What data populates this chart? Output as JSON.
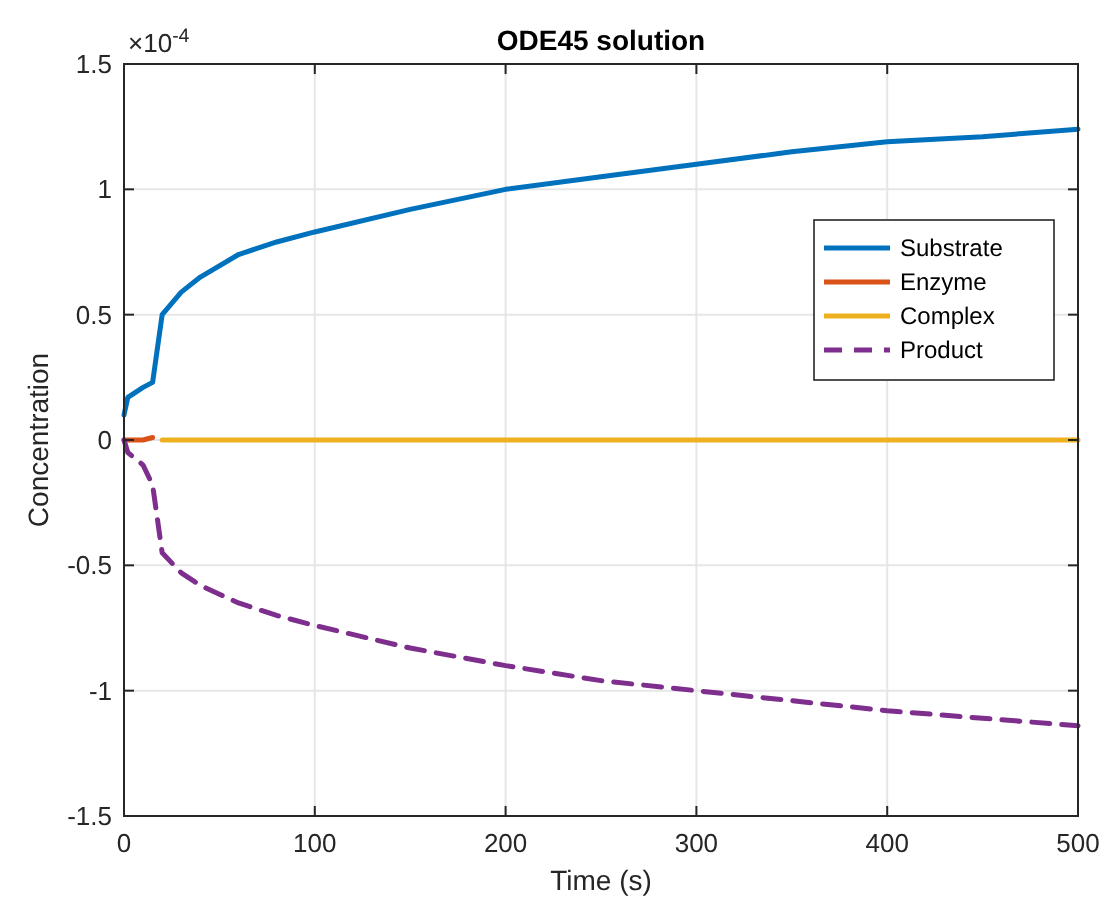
{
  "chart_data": {
    "type": "line",
    "title": "ODE45 solution",
    "xlabel": "Time (s)",
    "ylabel": "Concentration",
    "annotations": [
      "×10$^{-4}$"
    ],
    "xlim": [
      0,
      500
    ],
    "xticks": [
      0,
      100,
      200,
      300,
      400,
      500
    ],
    "ylim": [
      -1.5,
      1.5
    ],
    "yticks": [
      -1.5,
      -1,
      -0.5,
      0,
      0.5,
      1,
      1.5
    ],
    "grid": true,
    "legend": "top right",
    "marker": "none",
    "x": [
      0,
      2,
      10,
      15,
      20,
      30,
      40,
      60,
      80,
      100,
      150,
      200,
      250,
      300,
      350,
      400,
      450,
      500
    ],
    "series": [
      {
        "name": "Substrate",
        "color": "#0072bd",
        "line_style": "solid",
        "values": [
          0.1,
          0.17,
          0.21,
          0.23,
          0.5,
          0.59,
          0.65,
          0.74,
          0.79,
          0.83,
          0.92,
          1.0,
          1.05,
          1.1,
          1.15,
          1.19,
          1.21,
          1.24
        ]
      },
      {
        "name": "Enzyme",
        "color": "#d95319",
        "line_style": "solid",
        "values": [
          0,
          0,
          0,
          0.01,
          null,
          null,
          null,
          null,
          null,
          null,
          null,
          null,
          null,
          null,
          null,
          null,
          null,
          null
        ]
      },
      {
        "name": "Complex",
        "color": "#edb120",
        "line_style": "solid",
        "values": [
          null,
          null,
          null,
          null,
          0,
          0,
          0,
          0,
          0,
          0,
          0,
          0,
          0,
          0,
          0,
          0,
          0,
          0
        ]
      },
      {
        "name": "Product",
        "color": "#7e2f8e",
        "line_style": "dashed",
        "values": [
          0,
          -0.05,
          -0.1,
          -0.18,
          -0.45,
          -0.53,
          -0.58,
          -0.65,
          -0.7,
          -0.74,
          -0.83,
          -0.9,
          -0.96,
          -1.0,
          -1.04,
          -1.08,
          -1.11,
          -1.14
        ]
      }
    ]
  }
}
